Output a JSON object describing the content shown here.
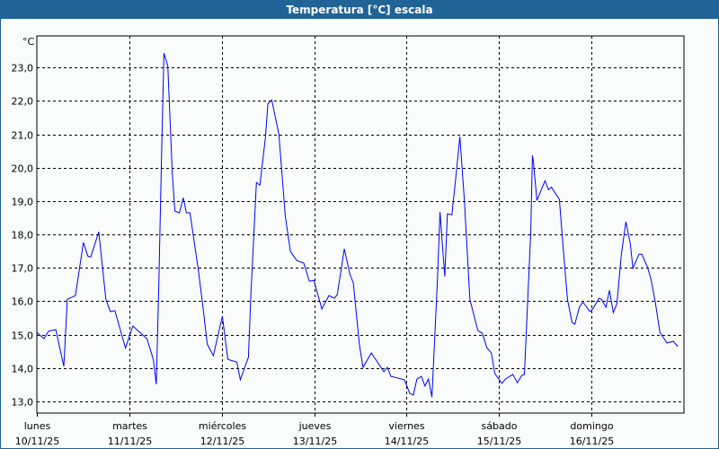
{
  "window": {
    "title": "Temperatura [°C] escala"
  },
  "chart_data": {
    "type": "line",
    "title": "Temperatura [°C] escala",
    "ylabel": "°C",
    "xlabel": "",
    "ylim": [
      12.65,
      23.95
    ],
    "xlim": [
      "10/11/25 00:00",
      "17/11/25 00:00"
    ],
    "grid": true,
    "line_color": "#0000ff",
    "grid_color": "#000000",
    "y_ticks": [
      "13,0",
      "14,0",
      "15,0",
      "16,0",
      "17,0",
      "18,0",
      "19,0",
      "20,0",
      "21,0",
      "22,0",
      "23,0"
    ],
    "x_ticks": [
      {
        "day": "lunes",
        "date": "10/11/25"
      },
      {
        "day": "martes",
        "date": "11/11/25"
      },
      {
        "day": "miércoles",
        "date": "12/11/25"
      },
      {
        "day": "jueves",
        "date": "13/11/25"
      },
      {
        "day": "viernes",
        "date": "14/11/25"
      },
      {
        "day": "sábado",
        "date": "15/11/25"
      },
      {
        "day": "domingo",
        "date": "16/11/25"
      }
    ],
    "series": [
      {
        "x": [
          "10/11/25 00:00",
          "10/11/25 01:50",
          "10/11/25 03:00",
          "10/11/25 04:55",
          "10/11/25 07:00",
          "10/11/25 07:55",
          "10/11/25 10:00",
          "10/11/25 12:05",
          "10/11/25 13:15",
          "10/11/25 14:00",
          "10/11/25 16:05",
          "10/11/25 17:55",
          "10/11/25 19:05",
          "10/11/25 20:15",
          "10/11/25 23:00",
          "11/11/25 00:55",
          "11/11/25 02:45",
          "11/11/25 04:35",
          "11/11/25 06:15",
          "11/11/25 07:00",
          "11/11/25 07:40",
          "11/11/25 08:20",
          "11/11/25 09:00",
          "11/11/25 10:00",
          "11/11/25 11:10",
          "11/11/25 11:50",
          "11/11/25 13:00",
          "11/11/25 14:00",
          "11/11/25 14:50",
          "11/11/25 15:45",
          "11/11/25 17:55",
          "11/11/25 19:05",
          "11/11/25 20:15",
          "11/11/25 21:50",
          "12/11/25 00:10",
          "12/11/25 01:35",
          "12/11/25 03:55",
          "12/11/25 04:50",
          "12/11/25 06:55",
          "12/11/25 07:35",
          "12/11/25 09:00",
          "12/11/25 09:55",
          "12/11/25 11:20",
          "12/11/25 12:00",
          "12/11/25 13:00",
          "12/11/25 14:50",
          "12/11/25 16:30",
          "12/11/25 17:50",
          "12/11/25 19:30",
          "12/11/25 21:20",
          "12/11/25 22:45",
          "12/11/25 23:55",
          "13/11/25 02:00",
          "13/11/25 03:50",
          "13/11/25 05:15",
          "13/11/25 06:00",
          "13/11/25 07:50",
          "13/11/25 09:15",
          "13/11/25 10:10",
          "13/11/25 11:45",
          "13/11/25 12:40",
          "13/11/25 14:50",
          "13/11/25 16:25",
          "13/11/25 18:05",
          "13/11/25 19:00",
          "13/11/25 19:55",
          "13/11/25 23:25",
          "14/11/25 00:50",
          "14/11/25 01:45",
          "14/11/25 02:40",
          "14/11/25 03:50",
          "14/11/25 04:45",
          "14/11/25 05:40",
          "14/11/25 06:35",
          "14/11/25 08:00",
          "14/11/25 08:40",
          "14/11/25 09:25",
          "14/11/25 09:55",
          "14/11/25 10:35",
          "14/11/25 11:45",
          "14/11/25 12:40",
          "14/11/25 13:50",
          "14/11/25 15:00",
          "14/11/25 16:25",
          "14/11/25 18:30",
          "14/11/25 19:40",
          "14/11/25 20:50",
          "14/11/25 22:00",
          "14/11/25 22:55",
          "15/11/25 00:45",
          "15/11/25 01:40",
          "15/11/25 03:35",
          "15/11/25 04:45",
          "15/11/25 05:55",
          "15/11/25 06:35",
          "15/11/25 08:15",
          "15/11/25 08:40",
          "15/11/25 08:55",
          "15/11/25 09:50",
          "15/11/25 11:55",
          "15/11/25 12:50",
          "15/11/25 13:35",
          "15/11/25 15:40",
          "15/11/25 16:35",
          "15/11/25 17:45",
          "15/11/25 18:55",
          "15/11/25 19:40",
          "15/11/25 20:50",
          "15/11/25 21:45",
          "15/11/25 23:35",
          "16/11/25 00:20",
          "16/11/25 01:55",
          "16/11/25 02:35",
          "16/11/25 03:45",
          "16/11/25 04:40",
          "16/11/25 05:40",
          "16/11/25 06:35",
          "16/11/25 07:45",
          "16/11/25 08:55",
          "16/11/25 10:05",
          "16/11/25 10:45",
          "16/11/25 12:20",
          "16/11/25 13:05",
          "16/11/25 14:30",
          "16/11/25 15:25",
          "16/11/25 16:35",
          "16/11/25 17:45",
          "16/11/25 19:35",
          "16/11/25 21:15",
          "16/11/25 22:25"
        ],
        "y": [
          15.07,
          14.88,
          15.1,
          15.15,
          14.05,
          16.06,
          16.17,
          17.76,
          17.35,
          17.33,
          18.08,
          16.06,
          15.69,
          15.72,
          14.6,
          15.26,
          15.07,
          14.88,
          14.26,
          13.51,
          16.5,
          20.18,
          23.43,
          23.05,
          19.83,
          18.7,
          18.65,
          19.1,
          18.65,
          18.65,
          16.95,
          15.88,
          14.72,
          14.37,
          15.55,
          14.26,
          14.18,
          13.65,
          14.32,
          16.23,
          19.56,
          19.48,
          20.9,
          21.92,
          22.03,
          21.0,
          18.56,
          17.49,
          17.22,
          17.14,
          16.6,
          16.63,
          15.77,
          16.17,
          16.09,
          16.2,
          17.57,
          16.82,
          16.55,
          14.7,
          14.02,
          14.45,
          14.18,
          13.89,
          14.02,
          13.75,
          13.65,
          13.24,
          13.19,
          13.67,
          13.75,
          13.46,
          13.67,
          13.13,
          16.63,
          18.67,
          17.49,
          16.74,
          18.62,
          18.59,
          19.59,
          20.93,
          19.02,
          16.06,
          15.12,
          15.04,
          14.61,
          14.45,
          13.83,
          13.54,
          13.67,
          13.81,
          13.56,
          13.78,
          13.81,
          18.11,
          20.37,
          20.18,
          19.02,
          19.61,
          19.34,
          19.42,
          19.05,
          17.68,
          16.06,
          15.37,
          15.31,
          15.82,
          15.98,
          15.69,
          15.77,
          16.09,
          16.06,
          15.82,
          16.33,
          15.66,
          15.93,
          17.41,
          18.38,
          17.71,
          16.99,
          17.41,
          17.41,
          17.03,
          16.68,
          15.96,
          15.07,
          14.75,
          14.8,
          14.64
        ]
      }
    ]
  }
}
